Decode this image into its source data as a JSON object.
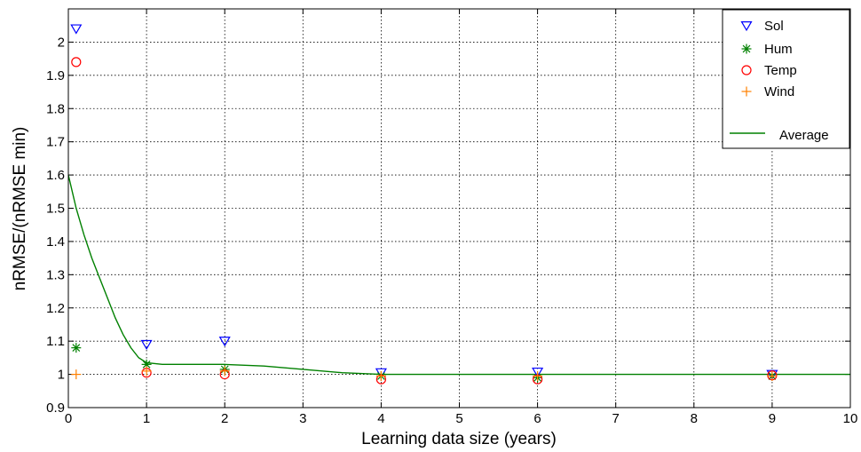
{
  "chart_data": {
    "type": "scatter",
    "title": "",
    "xlabel": "Learning data size (years)",
    "ylabel": "nRMSE/(nRMSE  min)",
    "xlim": [
      0,
      10
    ],
    "ylim": [
      0.9,
      2.1
    ],
    "xticks": [
      "0",
      "1",
      "2",
      "3",
      "4",
      "5",
      "6",
      "7",
      "8",
      "9",
      "10"
    ],
    "yticks": [
      "0.9",
      "1",
      "1.1",
      "1.2",
      "1.3",
      "1.4",
      "1.5",
      "1.6",
      "1.7",
      "1.8",
      "1.9",
      "2"
    ],
    "grid": true,
    "legend_position": "top-right",
    "series": [
      {
        "name": "Sol",
        "marker": "triangle-down",
        "color": "#0000ff",
        "x": [
          0.1,
          1,
          2,
          4,
          6,
          9
        ],
        "y": [
          2.04,
          1.09,
          1.1,
          1.005,
          1.007,
          1.0
        ]
      },
      {
        "name": "Hum",
        "marker": "asterisk",
        "color": "#008000",
        "x": [
          0.1,
          1,
          2,
          4,
          6,
          9
        ],
        "y": [
          1.08,
          1.03,
          1.015,
          0.995,
          0.99,
          0.995
        ]
      },
      {
        "name": "Temp",
        "marker": "circle",
        "color": "#ff0000",
        "x": [
          0.1,
          1,
          2,
          4,
          6,
          9
        ],
        "y": [
          1.94,
          1.005,
          1.0,
          0.985,
          0.985,
          0.997
        ]
      },
      {
        "name": "Wind",
        "marker": "plus",
        "color": "#ff8000",
        "x": [
          0.1,
          1,
          2,
          4,
          6,
          9
        ],
        "y": [
          1.0,
          1.01,
          1.01,
          0.995,
          0.995,
          0.995
        ]
      },
      {
        "name": "Average",
        "marker": "line",
        "color": "#008000",
        "x": [
          0,
          0.1,
          0.2,
          0.3,
          0.4,
          0.5,
          0.6,
          0.7,
          0.8,
          0.9,
          1,
          1.2,
          1.5,
          2,
          2.5,
          3,
          3.5,
          4,
          5,
          6,
          7,
          8,
          9,
          10
        ],
        "y": [
          1.6,
          1.5,
          1.42,
          1.35,
          1.29,
          1.23,
          1.17,
          1.12,
          1.08,
          1.05,
          1.035,
          1.03,
          1.03,
          1.03,
          1.025,
          1.015,
          1.005,
          1.0,
          1.0,
          1.0,
          1.0,
          1.0,
          1.0,
          1.0
        ]
      }
    ]
  }
}
